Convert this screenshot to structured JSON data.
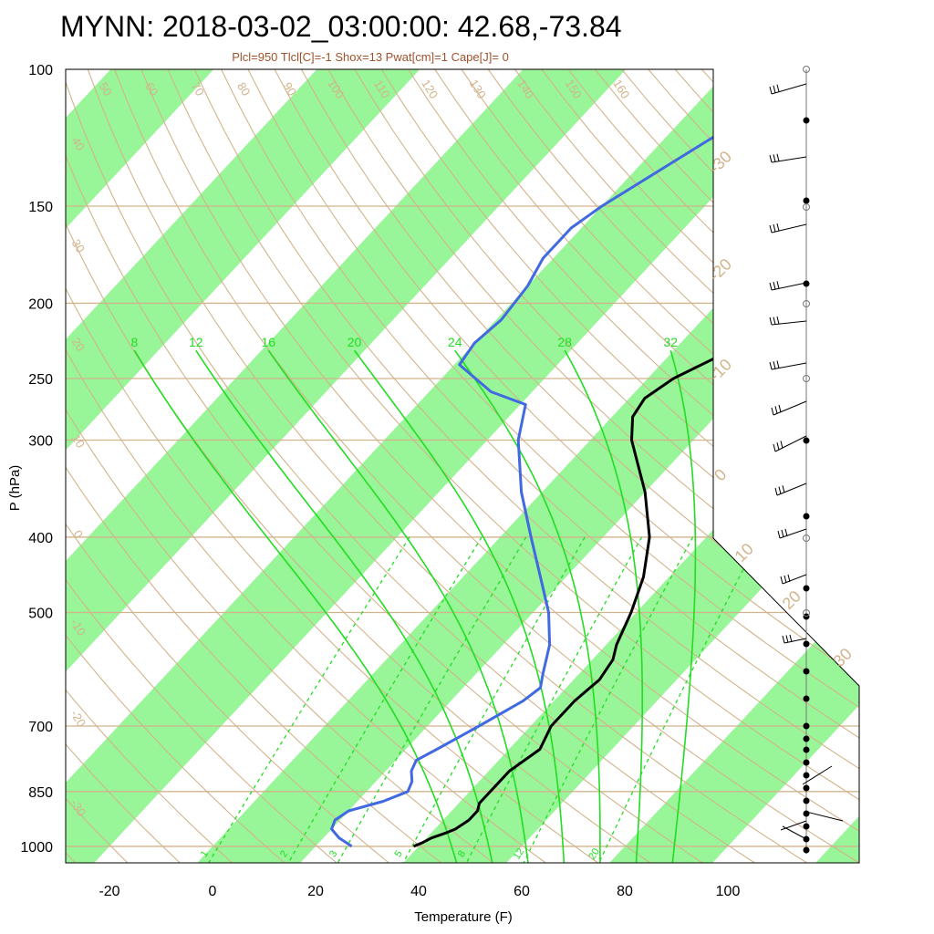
{
  "title": "MYNN: 2018-03-02_03:00:00: 42.68,-73.84",
  "subtitle": "Plcl=950 Tlcl[C]=-1 Shox=13 Pwat[cm]=1 Cape[J]= 0",
  "colors": {
    "temperature": "#000000",
    "dewpoint": "#4169e1",
    "bands": "#98f598",
    "isobars": "#d2b48c",
    "mixing_ratio": "#22dd22",
    "labels_tan": "#d2b48c",
    "subtitle": "#a0522d"
  },
  "chart_data": {
    "type": "line",
    "title": "MYNN: 2018-03-02_03:00:00: 42.68,-73.84",
    "subtitle": "Plcl=950 Tlcl[C]=-1 Shox=13 Pwat[cm]=1 Cape[J]= 0",
    "xlabel": "Temperature (F)",
    "ylabel": "P (hPa)",
    "y_log_scale": true,
    "pressure_tick_labels": [
      "100",
      "150",
      "200",
      "250",
      "300",
      "400",
      "500",
      "700",
      "850",
      "1000"
    ],
    "temperature_tick_labels": [
      "-20",
      "0",
      "20",
      "40",
      "60",
      "80",
      "100"
    ],
    "dry_adiabat_labels": [
      "50",
      "60",
      "70",
      "80",
      "90",
      "100",
      "110",
      "120",
      "130",
      "140",
      "150",
      "160",
      "40",
      "30",
      "20",
      "10",
      "0",
      "-10",
      "-20",
      "-30"
    ],
    "moist_adiabat_labels_top": [
      "8",
      "12",
      "16",
      "20",
      "24",
      "28",
      "32"
    ],
    "mixing_ratio_labels_bottom": [
      "1",
      "2",
      "3",
      "5",
      "8",
      "12",
      "20"
    ],
    "right_side_labels": [
      "30",
      "20",
      "10",
      "0",
      "-10",
      "-20",
      "-30"
    ],
    "series": [
      {
        "id": "temperature",
        "points": [
          [
            1000,
            39
          ],
          [
            990,
            40
          ],
          [
            975,
            41
          ],
          [
            960,
            43
          ],
          [
            950,
            44
          ],
          [
            925,
            45
          ],
          [
            900,
            45
          ],
          [
            880,
            44
          ],
          [
            850,
            44
          ],
          [
            825,
            44
          ],
          [
            800,
            44
          ],
          [
            750,
            46
          ],
          [
            700,
            44
          ],
          [
            650,
            44
          ],
          [
            610,
            45
          ],
          [
            575,
            44
          ],
          [
            550,
            42
          ],
          [
            500,
            39
          ],
          [
            450,
            35
          ],
          [
            400,
            29
          ],
          [
            350,
            20
          ],
          [
            300,
            8
          ],
          [
            280,
            4
          ],
          [
            265,
            3
          ],
          [
            250,
            5
          ],
          [
            230,
            11
          ],
          [
            220,
            15
          ],
          [
            210,
            19
          ],
          [
            200,
            22
          ],
          [
            175,
            28
          ],
          [
            150,
            33
          ],
          [
            135,
            37
          ],
          [
            120,
            44
          ],
          [
            110,
            50
          ],
          [
            100,
            54
          ]
        ]
      },
      {
        "id": "dewpoint",
        "points": [
          [
            1000,
            27
          ],
          [
            975,
            23
          ],
          [
            950,
            20
          ],
          [
            925,
            19
          ],
          [
            900,
            20
          ],
          [
            875,
            25
          ],
          [
            850,
            28
          ],
          [
            825,
            27
          ],
          [
            800,
            25
          ],
          [
            775,
            24
          ],
          [
            750,
            26
          ],
          [
            700,
            30
          ],
          [
            650,
            34
          ],
          [
            625,
            35
          ],
          [
            600,
            33
          ],
          [
            550,
            29
          ],
          [
            500,
            23
          ],
          [
            450,
            15
          ],
          [
            400,
            6
          ],
          [
            350,
            -4
          ],
          [
            300,
            -14
          ],
          [
            270,
            -19
          ],
          [
            260,
            -28
          ],
          [
            240,
            -39
          ],
          [
            225,
            -40
          ],
          [
            210,
            -39
          ],
          [
            190,
            -40
          ],
          [
            175,
            -42
          ],
          [
            160,
            -42
          ],
          [
            150,
            -40
          ],
          [
            120,
            -30
          ],
          [
            100,
            -19
          ]
        ]
      }
    ],
    "wind_barbs_present": true
  }
}
